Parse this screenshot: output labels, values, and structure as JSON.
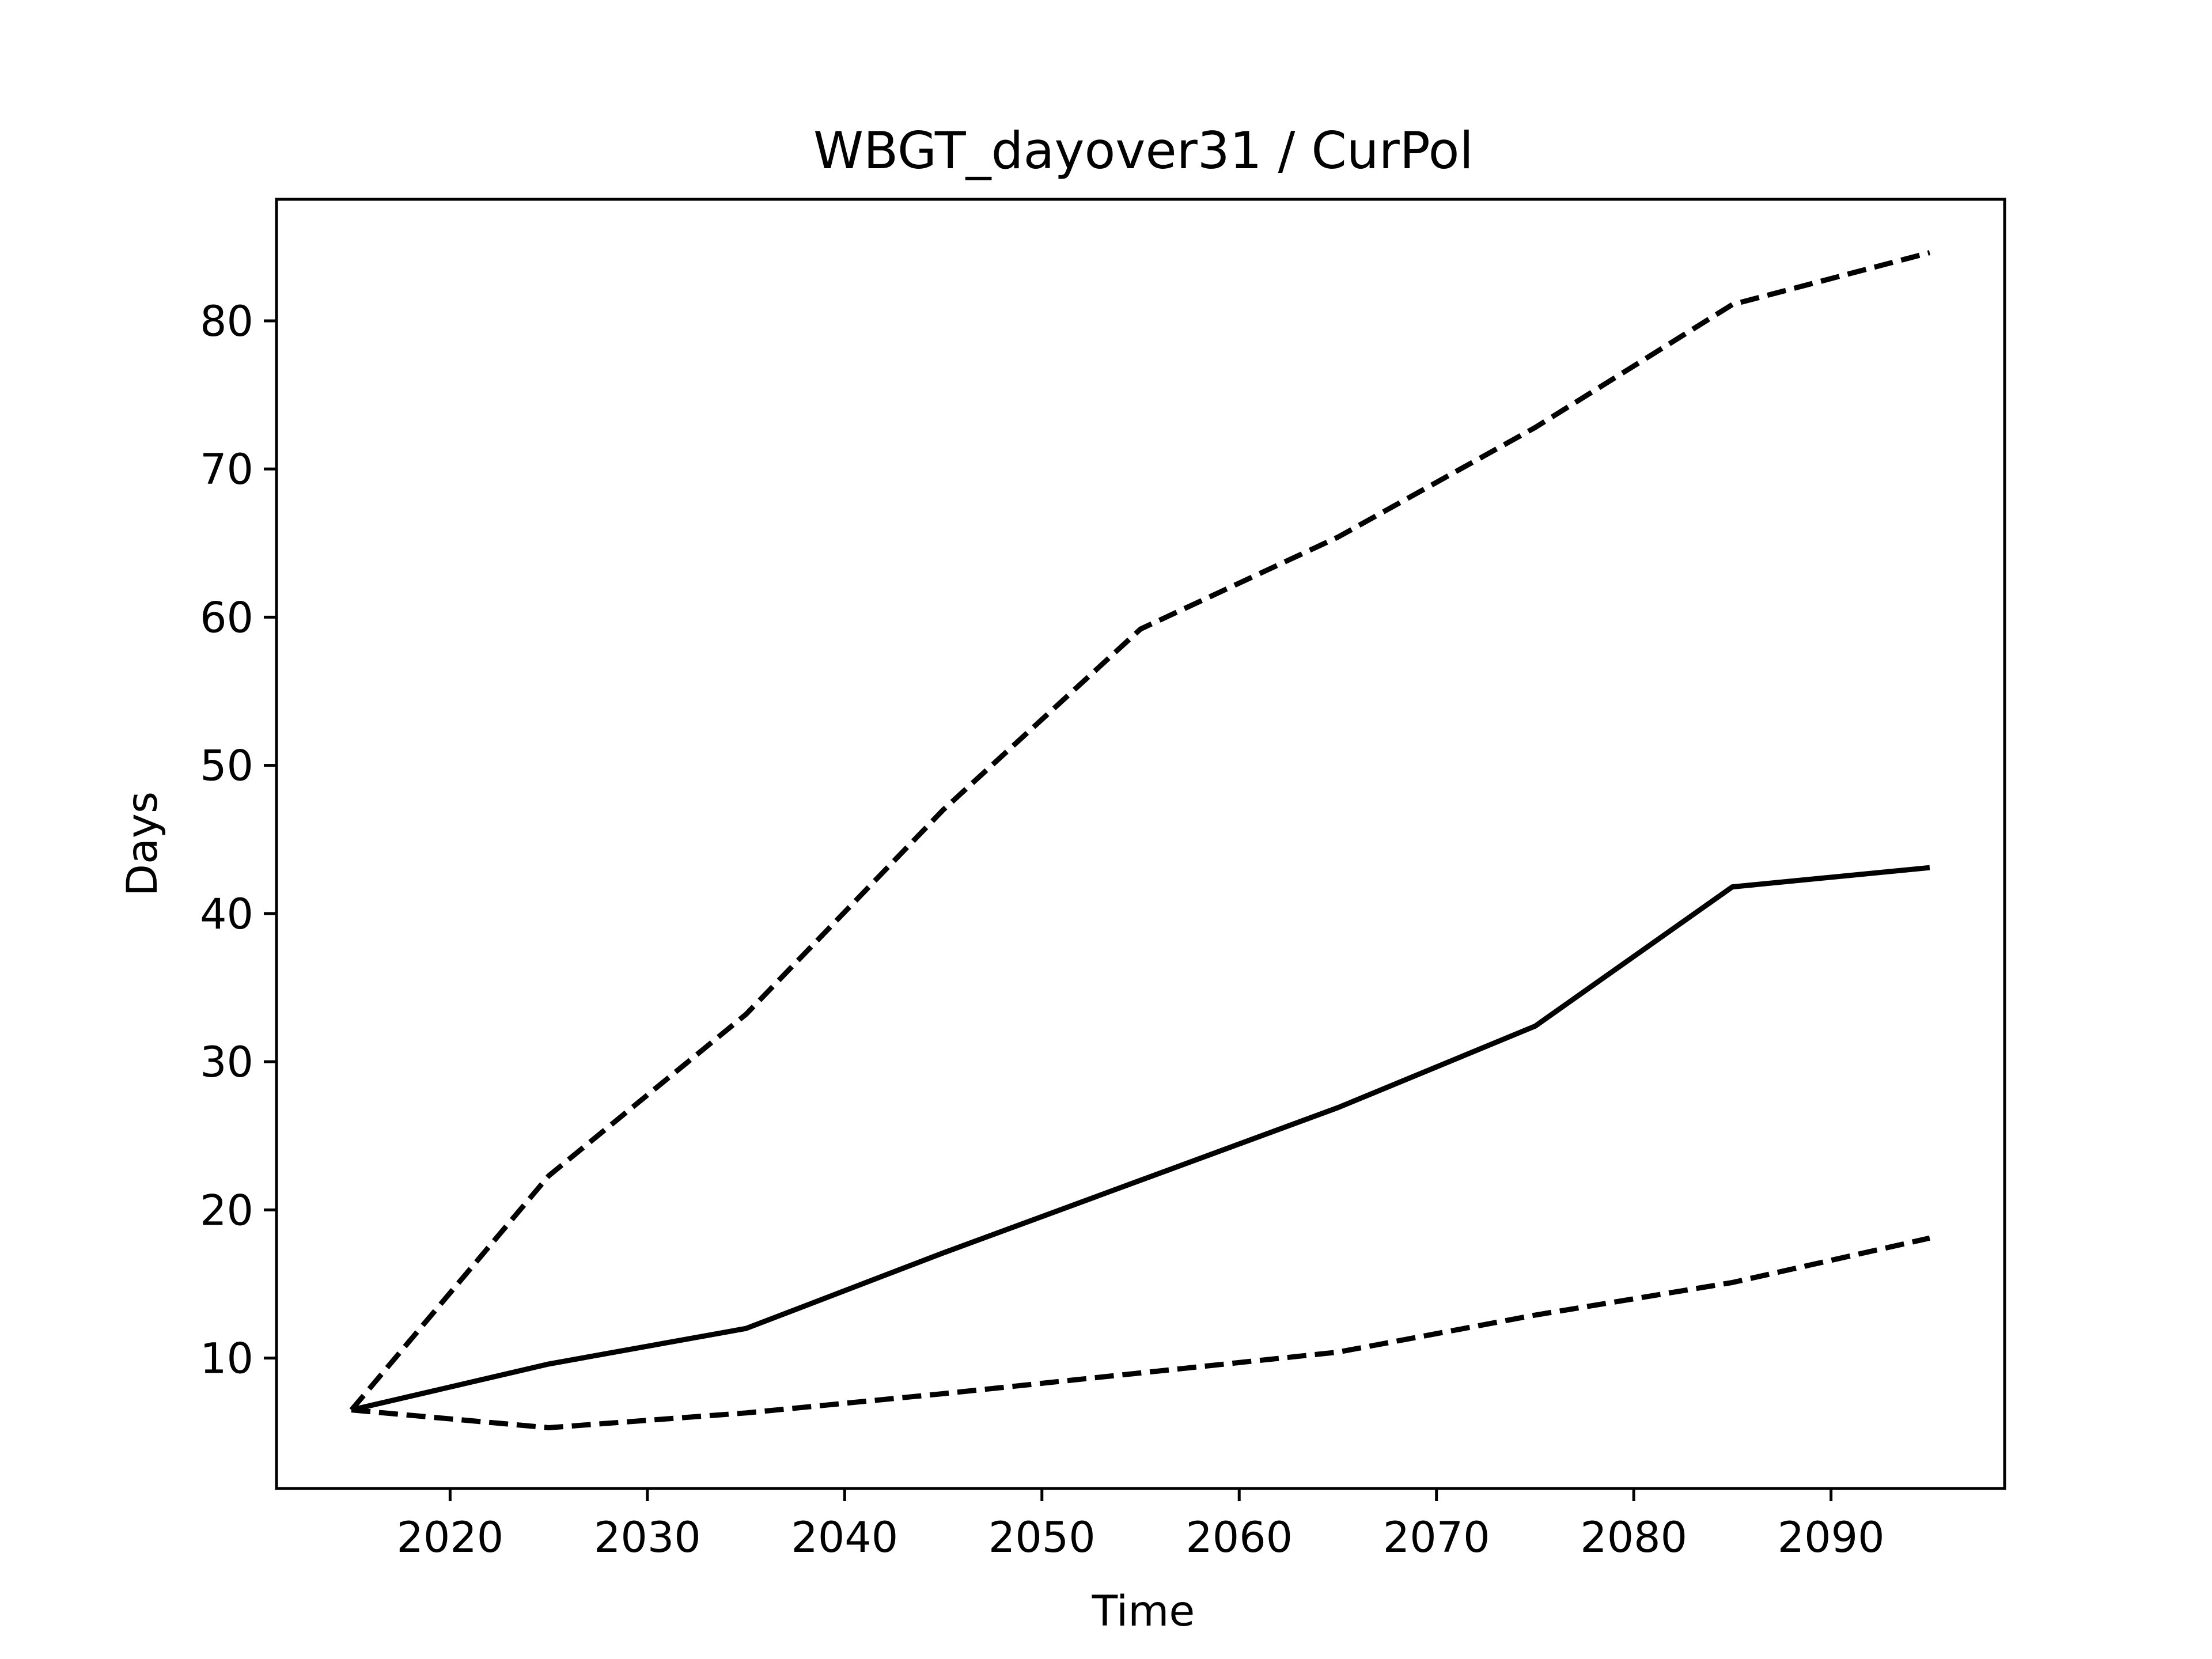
{
  "chart_data": {
    "type": "line",
    "title": "WBGT_dayover31 / CurPol",
    "xlabel": "Time",
    "ylabel": "Days",
    "xlim": [
      2011.2,
      2098.8
    ],
    "ylim": [
      1.2,
      88.2
    ],
    "xticks": [
      2020,
      2030,
      2040,
      2050,
      2060,
      2070,
      2080,
      2090
    ],
    "yticks": [
      10,
      20,
      30,
      40,
      50,
      60,
      70,
      80
    ],
    "grid": false,
    "legend": "none",
    "x": [
      2015,
      2025,
      2035,
      2045,
      2055,
      2065,
      2075,
      2085,
      2095
    ],
    "series": [
      {
        "style": "dashed",
        "color": "#000000",
        "values": [
          6.5,
          22.3,
          33.2,
          47.0,
          59.2,
          65.4,
          72.8,
          81.1,
          84.6
        ]
      },
      {
        "style": "solid",
        "color": "#000000",
        "values": [
          6.5,
          9.6,
          12.0,
          17.1,
          22.0,
          26.9,
          32.4,
          41.8,
          43.1
        ]
      },
      {
        "style": "dashed",
        "color": "#000000",
        "values": [
          6.5,
          5.3,
          6.3,
          7.6,
          9.0,
          10.4,
          12.9,
          15.1,
          18.1
        ]
      }
    ]
  }
}
